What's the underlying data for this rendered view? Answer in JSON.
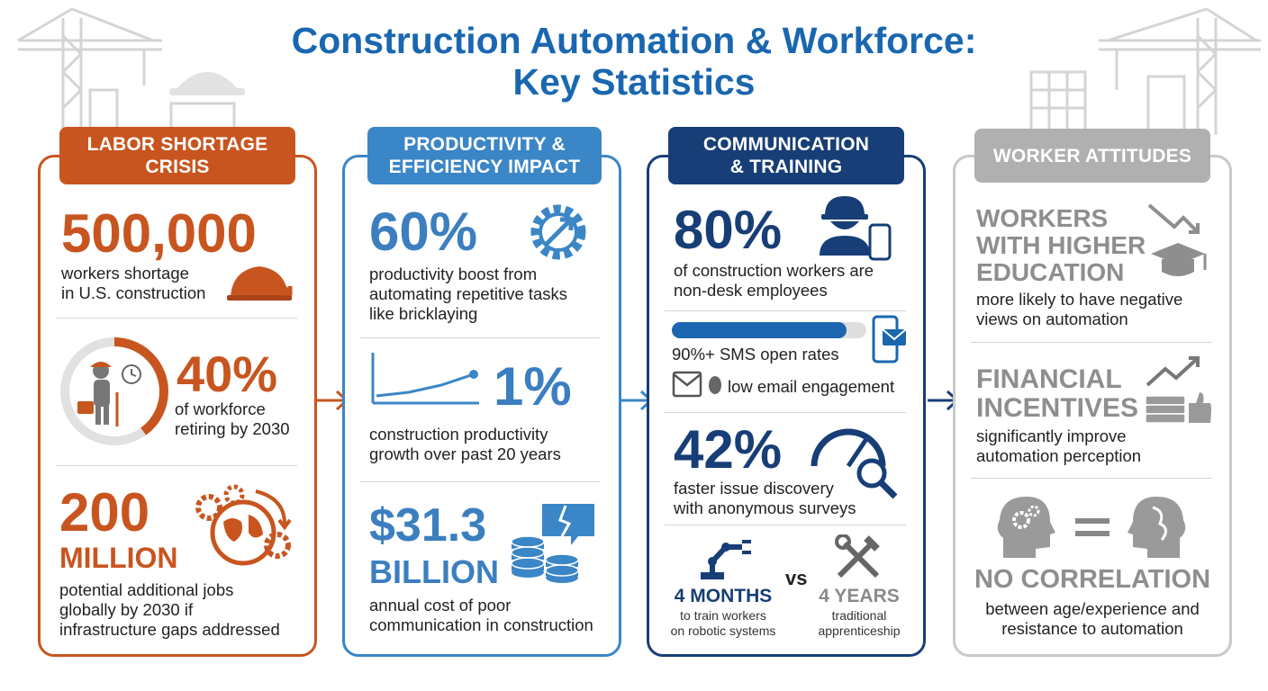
{
  "title": {
    "line1": "Construction Automation & Workforce:",
    "line2": "Key Statistics"
  },
  "colors": {
    "orange": "#c8551f",
    "blue": "#3b86c6",
    "navy": "#173e76",
    "gray": "#b0b0b0",
    "title": "#1a67b0"
  },
  "labor": {
    "header_line1": "LABOR SHORTAGE",
    "header_line2": "CRISIS",
    "stat1": {
      "value": "500,000",
      "line1": "workers shortage",
      "line2": "in U.S. construction"
    },
    "stat2": {
      "value": "40%",
      "line1": "of workforce",
      "line2": "retiring by 2030",
      "ring_fraction": 0.4
    },
    "stat3": {
      "value_line1": "200",
      "value_line2": "MILLION",
      "line1": "potential additional jobs",
      "line2": "globally by 2030 if",
      "line3": "infrastructure gaps addressed"
    }
  },
  "productivity": {
    "header_line1": "PRODUCTIVITY &",
    "header_line2": "EFFICIENCY IMPACT",
    "stat1": {
      "value": "60%",
      "line1": "productivity boost from",
      "line2": "automating repetitive tasks",
      "line3": "like bricklaying"
    },
    "stat2": {
      "value": "1%",
      "line1": "construction productivity",
      "line2": "growth over past 20 years"
    },
    "stat3": {
      "value_line1": "$31.3",
      "value_line2": "BILLION",
      "line1": "annual cost of poor",
      "line2": "communication in construction"
    }
  },
  "communication": {
    "header_line1": "COMMUNICATION",
    "header_line2": "& TRAINING",
    "stat1": {
      "value": "80%",
      "line1": "of construction workers are",
      "line2": "non-desk employees"
    },
    "sms": {
      "label": "90%+ SMS open rates",
      "fraction": 0.9
    },
    "email": {
      "label": "low email engagement"
    },
    "stat3": {
      "value": "42%",
      "line1": "faster issue discovery",
      "line2": "with anonymous surveys"
    },
    "compare": {
      "left_value": "4 MONTHS",
      "left_line1": "to train workers",
      "left_line2": "on robotic systems",
      "vs": "vs",
      "right_value": "4 YEARS",
      "right_line1": "traditional",
      "right_line2": "apprenticeship"
    }
  },
  "attitudes": {
    "header": "WORKER ATTITUDES",
    "stat1": {
      "heading_line1": "WORKERS",
      "heading_line2": "WITH HIGHER",
      "heading_line3": "EDUCATION",
      "line1": "more likely to have negative",
      "line2": "views on automation"
    },
    "stat2": {
      "heading_line1": "FINANCIAL",
      "heading_line2": "INCENTIVES",
      "line1": "significantly improve",
      "line2": "automation perception"
    },
    "stat3": {
      "heading": "NO CORRELATION",
      "line1": "between age/experience and",
      "line2": "resistance to automation"
    }
  }
}
